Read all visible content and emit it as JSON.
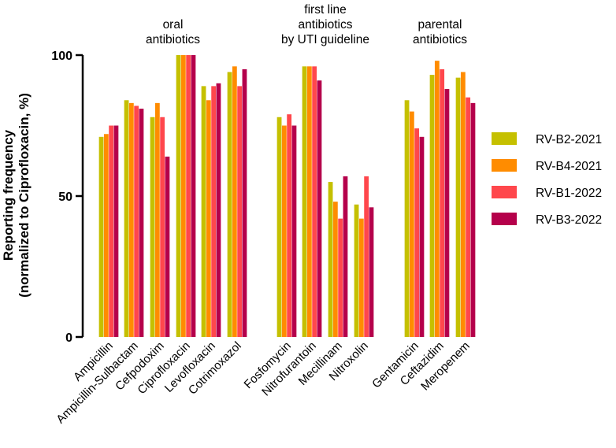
{
  "chart_data": {
    "type": "bar",
    "title": "",
    "xlabel": "",
    "ylabel_line1": "Reporting frequency",
    "ylabel_line2": "(normalized to Ciprofloxacin, %)",
    "ylim": [
      0,
      100
    ],
    "yticks": [
      {
        "value": 0,
        "label": "0"
      },
      {
        "value": 50,
        "label": "50"
      },
      {
        "value": 100,
        "label": "100"
      }
    ],
    "groups": [
      {
        "lines": [
          "oral",
          "antibiotics"
        ],
        "categories": [
          0,
          1,
          2,
          3,
          4,
          5
        ]
      },
      {
        "lines": [
          "first line",
          "antibiotics",
          "by UTI guideline"
        ],
        "categories": [
          6,
          7,
          8,
          9
        ]
      },
      {
        "lines": [
          "parental",
          "antibiotics"
        ],
        "categories": [
          10,
          11,
          12
        ]
      }
    ],
    "categories": [
      "Ampicillin",
      "Ampicillin-Sulbactam",
      "Cefpodoxim",
      "Ciprofloxacin",
      "Levofloxacin",
      "Cotrimoxazol",
      "Fosfomycin",
      "Nitrofurantoin",
      "Mecillinam",
      "Nitroxolin",
      "Gentamicin",
      "Ceftazidim",
      "Meropenem"
    ],
    "series": [
      {
        "name": "RV-B2-2021",
        "color": "#c5c000",
        "values": [
          71,
          84,
          78,
          100,
          89,
          94,
          78,
          96,
          55,
          47,
          84,
          93,
          92
        ]
      },
      {
        "name": "RV-B4-2021",
        "color": "#ff8c00",
        "values": [
          72,
          83,
          83,
          100,
          84,
          96,
          75,
          96,
          48,
          42,
          80,
          98,
          94
        ]
      },
      {
        "name": "RV-B1-2022",
        "color": "#ff474c",
        "values": [
          75,
          82,
          78,
          100,
          89,
          89,
          79,
          96,
          42,
          57,
          74,
          95,
          85
        ]
      },
      {
        "name": "RV-B3-2022",
        "color": "#b5004b",
        "values": [
          75,
          81,
          64,
          100,
          90,
          95,
          75,
          91,
          57,
          46,
          71,
          88,
          83
        ]
      }
    ],
    "legend_position": "right",
    "grid": false
  }
}
